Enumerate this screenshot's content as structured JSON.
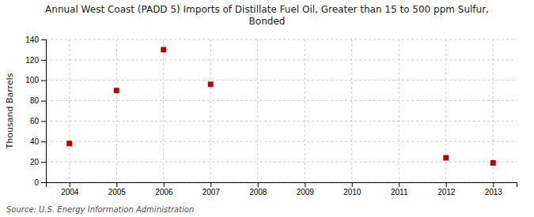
{
  "chart_data": {
    "type": "scatter",
    "title": "Annual West Coast (PADD 5) Imports of Distillate Fuel Oil, Greater than 15 to 500 ppm Sulfur,\nBonded",
    "ylabel": "Thousand Barrels",
    "source": "Source: U.S. Energy Information Administration",
    "x": [
      2004,
      2005,
      2006,
      2007,
      2012,
      2013
    ],
    "values": [
      38,
      90,
      130,
      96,
      24,
      19
    ],
    "color": "#bb0000",
    "marker": "square",
    "xlim": [
      2003.5,
      2013.5
    ],
    "ylim": [
      0,
      140
    ],
    "xticks": [
      2004,
      2005,
      2006,
      2007,
      2008,
      2009,
      2010,
      2011,
      2012,
      2013
    ],
    "yticks": [
      0,
      20,
      40,
      60,
      80,
      100,
      120,
      140
    ],
    "grid": true
  }
}
